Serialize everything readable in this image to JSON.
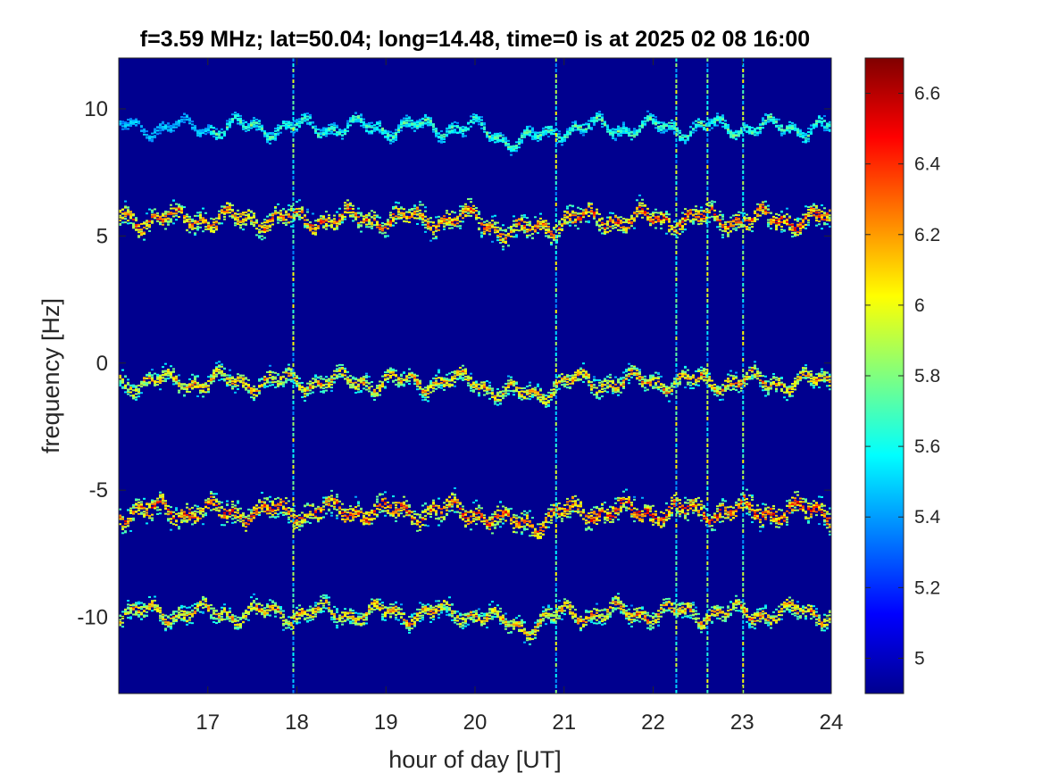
{
  "chart_data": {
    "type": "heatmap",
    "title": "f=3.59 MHz;  lat=50.04; long=14.48, time=0 is at 2025 02 08 16:00",
    "xlabel": "hour of day [UT]",
    "ylabel": "frequency [Hz]",
    "xlim": [
      16,
      24
    ],
    "ylim": [
      -13,
      12
    ],
    "xticks": [
      "17",
      "18",
      "19",
      "20",
      "21",
      "22",
      "23",
      "24"
    ],
    "yticks": [
      "10",
      "5",
      "0",
      "-5",
      "-10"
    ],
    "colormap": "jet",
    "background_color": "#00008f",
    "colorbar": {
      "lim": [
        4.9,
        6.7
      ],
      "ticks": [
        "5",
        "5.2",
        "5.4",
        "5.6",
        "5.8",
        "6",
        "6.2",
        "6.4",
        "6.6"
      ]
    },
    "traces": [
      {
        "name": "",
        "center_hz": 9.3,
        "intensity": 0.45,
        "width_hz": 0.35
      },
      {
        "name": "",
        "center_hz": 5.7,
        "intensity": 0.9,
        "width_hz": 0.6
      },
      {
        "name": "",
        "center_hz": -0.7,
        "intensity": 0.8,
        "width_hz": 0.5
      },
      {
        "name": "",
        "center_hz": -5.8,
        "intensity": 0.95,
        "width_hz": 0.65
      },
      {
        "name": "",
        "center_hz": -9.8,
        "intensity": 0.8,
        "width_hz": 0.5
      }
    ],
    "vertical_spikes_hour": [
      17.95,
      20.9,
      22.25,
      22.6,
      23.0
    ]
  }
}
